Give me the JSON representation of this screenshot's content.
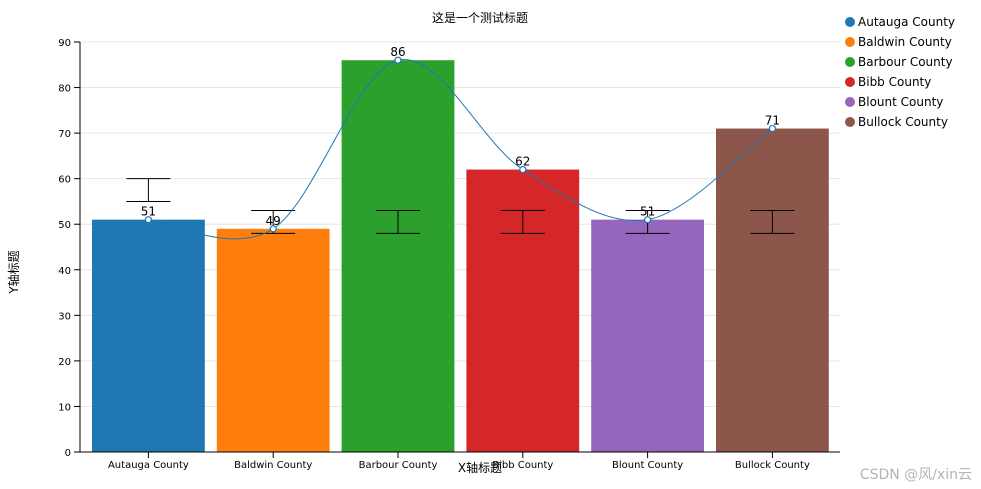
{
  "chart_data": {
    "type": "bar",
    "title": "这是一个测试标题",
    "xlabel": "X轴标题",
    "ylabel": "Y轴标题",
    "ylim": [
      0,
      90
    ],
    "yticks": [
      0,
      10,
      20,
      30,
      40,
      50,
      60,
      70,
      80,
      90
    ],
    "grid": true,
    "legend_position": "top-right",
    "categories": [
      "Autauga County",
      "Baldwin County",
      "Barbour County",
      "Bibb County",
      "Blount County",
      "Bullock County"
    ],
    "values": [
      51,
      49,
      86,
      62,
      51,
      71
    ],
    "colors": [
      "#1f77b4",
      "#ff7f0e",
      "#2ca02c",
      "#d62728",
      "#9467bd",
      "#8c564b"
    ],
    "error_bars": [
      {
        "low": 55,
        "high": 60
      },
      {
        "low": 48,
        "high": 53
      },
      {
        "low": 48,
        "high": 53
      },
      {
        "low": 48,
        "high": 53
      },
      {
        "low": 48,
        "high": 53
      },
      {
        "low": 48,
        "high": 53
      }
    ],
    "line": {
      "color": "#1f77b4",
      "values": [
        51,
        49,
        86,
        62,
        51,
        71
      ],
      "smooth": true
    }
  },
  "watermark": "CSDN @风/xin云"
}
